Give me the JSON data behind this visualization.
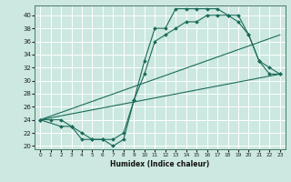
{
  "xlabel": "Humidex (Indice chaleur)",
  "bg_color": "#cce8e0",
  "line_color": "#1a6b5a",
  "grid_color": "#ffffff",
  "xlim": [
    -0.5,
    23.5
  ],
  "ylim": [
    19.5,
    41.5
  ],
  "yticks": [
    20,
    22,
    24,
    26,
    28,
    30,
    32,
    34,
    36,
    38,
    40
  ],
  "xticks": [
    0,
    1,
    2,
    3,
    4,
    5,
    6,
    7,
    8,
    9,
    10,
    11,
    12,
    13,
    14,
    15,
    16,
    17,
    18,
    19,
    20,
    21,
    22,
    23
  ],
  "curve_top_x": [
    0,
    1,
    2,
    3,
    4,
    5,
    6,
    7,
    8,
    9,
    10,
    11,
    12,
    13,
    14,
    15,
    16,
    17,
    18,
    19,
    20,
    21,
    22,
    23
  ],
  "curve_top_y": [
    24,
    24,
    24,
    23,
    21,
    21,
    21,
    20,
    21,
    27,
    33,
    38,
    38,
    41,
    41,
    41,
    41,
    41,
    40,
    39,
    37,
    33,
    31,
    31
  ],
  "curve_mid_x": [
    0,
    2,
    3,
    4,
    5,
    6,
    7,
    8,
    9,
    10,
    11,
    12,
    13,
    14,
    15,
    16,
    17,
    18,
    19,
    20,
    21,
    22,
    23
  ],
  "curve_mid_y": [
    24,
    23,
    23,
    22,
    21,
    21,
    21,
    22,
    27,
    31,
    36,
    37,
    38,
    39,
    39,
    40,
    40,
    40,
    40,
    37,
    33,
    32,
    31
  ],
  "line1_x": [
    0,
    23
  ],
  "line1_y": [
    24,
    31
  ],
  "line2_x": [
    0,
    23
  ],
  "line2_y": [
    24,
    37
  ],
  "xlabel_fontsize": 5.5,
  "ytick_fontsize": 5,
  "xtick_fontsize": 4.2,
  "linewidth": 0.8,
  "markersize": 2.0
}
